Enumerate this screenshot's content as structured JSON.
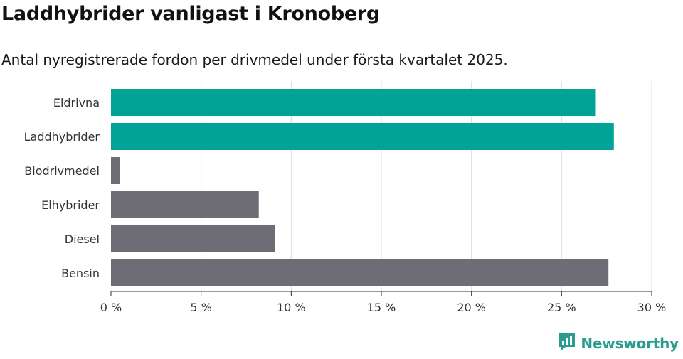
{
  "title": "Laddhybrider vanligast i Kronoberg",
  "subtitle": "Antal nyregistrerade fordon per drivmedel under första kvartalet 2025.",
  "brand": {
    "name": "Newsworthy",
    "icon": "newsworthy-logo-icon",
    "color": "#2a9d8f"
  },
  "colors": {
    "highlight": "#00a396",
    "default": "#6e6d75",
    "grid": "#dddddd"
  },
  "chart_data": {
    "type": "bar",
    "orientation": "horizontal",
    "categories": [
      "Eldrivna",
      "Laddhybrider",
      "Biodrivmedel",
      "Elhybrider",
      "Diesel",
      "Bensin"
    ],
    "values": [
      26.9,
      27.9,
      0.5,
      8.2,
      9.1,
      27.6
    ],
    "highlight": [
      true,
      true,
      false,
      false,
      false,
      false
    ],
    "xlim": [
      0,
      30
    ],
    "ticks": [
      0,
      5,
      10,
      15,
      20,
      25,
      30
    ],
    "tick_labels": [
      "0 %",
      "5 %",
      "10 %",
      "15 %",
      "20 %",
      "25 %",
      "30 %"
    ],
    "grid": true,
    "xlabel": "",
    "ylabel": ""
  }
}
